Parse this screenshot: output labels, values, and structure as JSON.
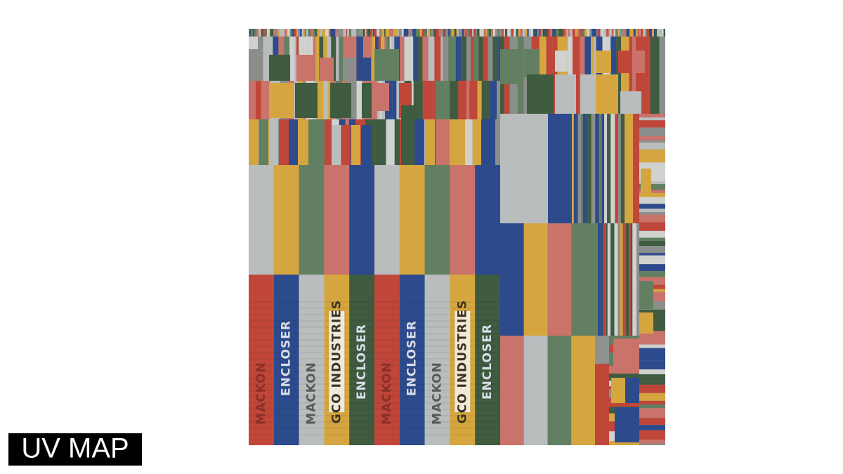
{
  "title": "UV MAP",
  "texture_labels": [
    "MACKON",
    "ENCLOSER",
    "MACKON",
    "GCO INDUSTRIES",
    "ENCLOSER",
    "MACKON",
    "ENCLOSER",
    "MACKON",
    "GCO INDUSTRIES",
    "ENCLOSER"
  ]
}
